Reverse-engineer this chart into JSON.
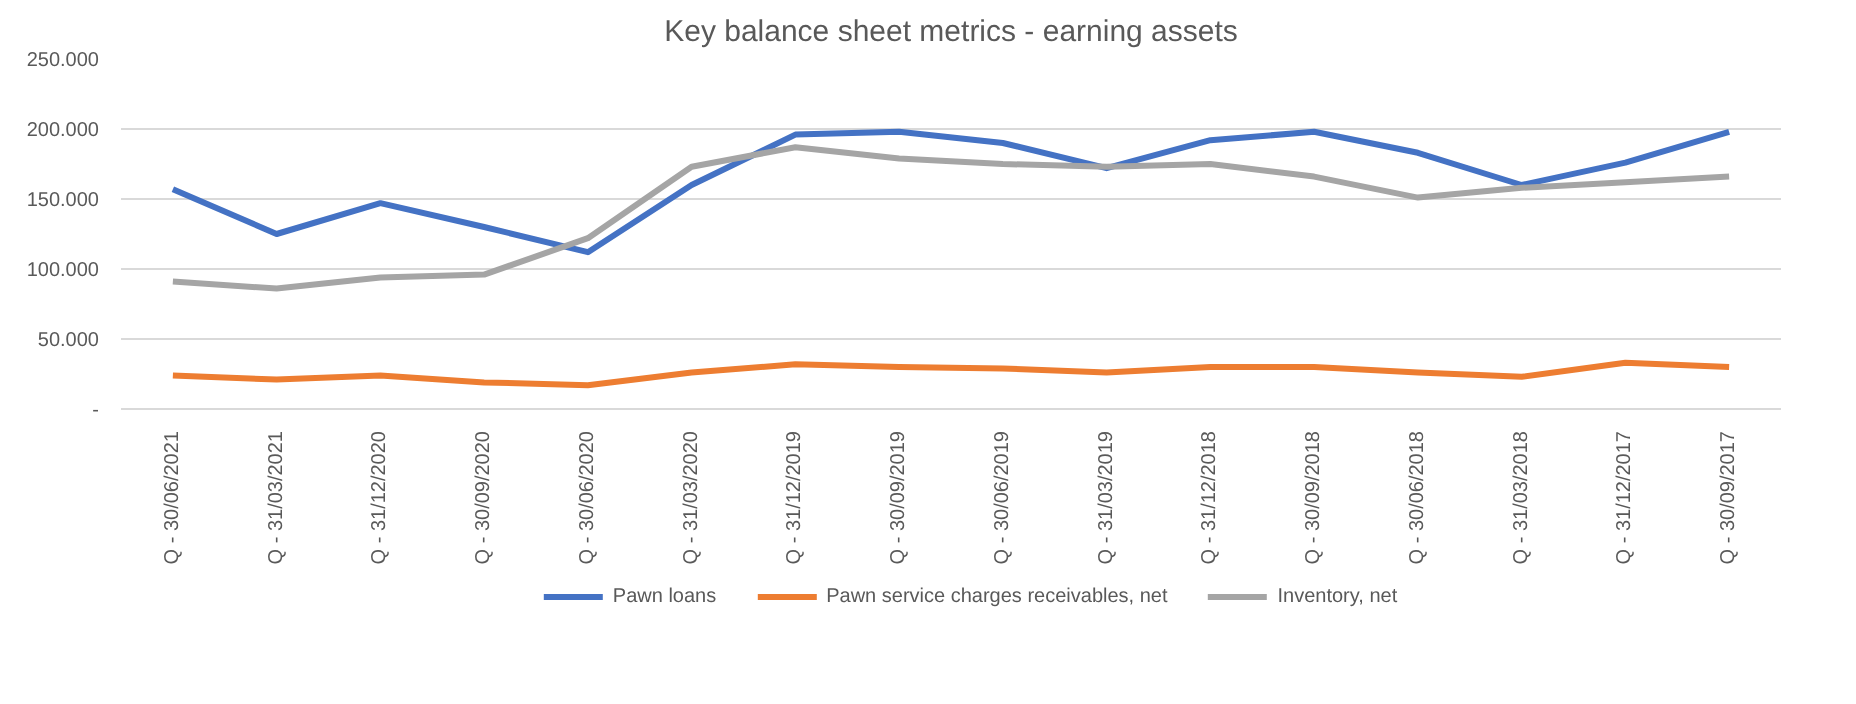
{
  "chart_data": {
    "type": "line",
    "title": "Key balance sheet metrics - earning assets",
    "categories": [
      "Q - 30/06/2021",
      "Q - 31/03/2021",
      "Q - 31/12/2020",
      "Q - 30/09/2020",
      "Q - 30/06/2020",
      "Q - 31/03/2020",
      "Q - 31/12/2019",
      "Q - 30/09/2019",
      "Q - 30/06/2019",
      "Q - 31/03/2019",
      "Q - 31/12/2018",
      "Q - 30/09/2018",
      "Q - 30/06/2018",
      "Q - 31/03/2018",
      "Q - 31/12/2017",
      "Q - 30/09/2017"
    ],
    "series": [
      {
        "name": "Pawn loans",
        "color": "#4472c4",
        "values": [
          157000,
          125000,
          147000,
          130000,
          112000,
          160000,
          196000,
          198000,
          190000,
          172000,
          192000,
          198000,
          183000,
          160000,
          176000,
          198000
        ]
      },
      {
        "name": "Pawn service charges receivables, net",
        "color": "#ed7d31",
        "values": [
          24000,
          21000,
          24000,
          19000,
          17000,
          26000,
          32000,
          30000,
          29000,
          26000,
          30000,
          30000,
          26000,
          23000,
          33000,
          30000
        ]
      },
      {
        "name": "Inventory, net",
        "color": "#a5a5a5",
        "values": [
          91000,
          86000,
          94000,
          96000,
          122000,
          173000,
          187000,
          179000,
          175000,
          173000,
          175000,
          166000,
          151000,
          158000,
          162000,
          166000
        ]
      }
    ],
    "ylim": [
      0,
      250000
    ],
    "yticks": [
      {
        "value": 0,
        "label": "-"
      },
      {
        "value": 50000,
        "label": "50.000"
      },
      {
        "value": 100000,
        "label": "100.000"
      },
      {
        "value": 150000,
        "label": "150.000"
      },
      {
        "value": 200000,
        "label": "200.000"
      },
      {
        "value": 250000,
        "label": "250.000"
      }
    ],
    "grid": "y",
    "legend": "bottom",
    "marker": "none",
    "line_style": "solid"
  }
}
